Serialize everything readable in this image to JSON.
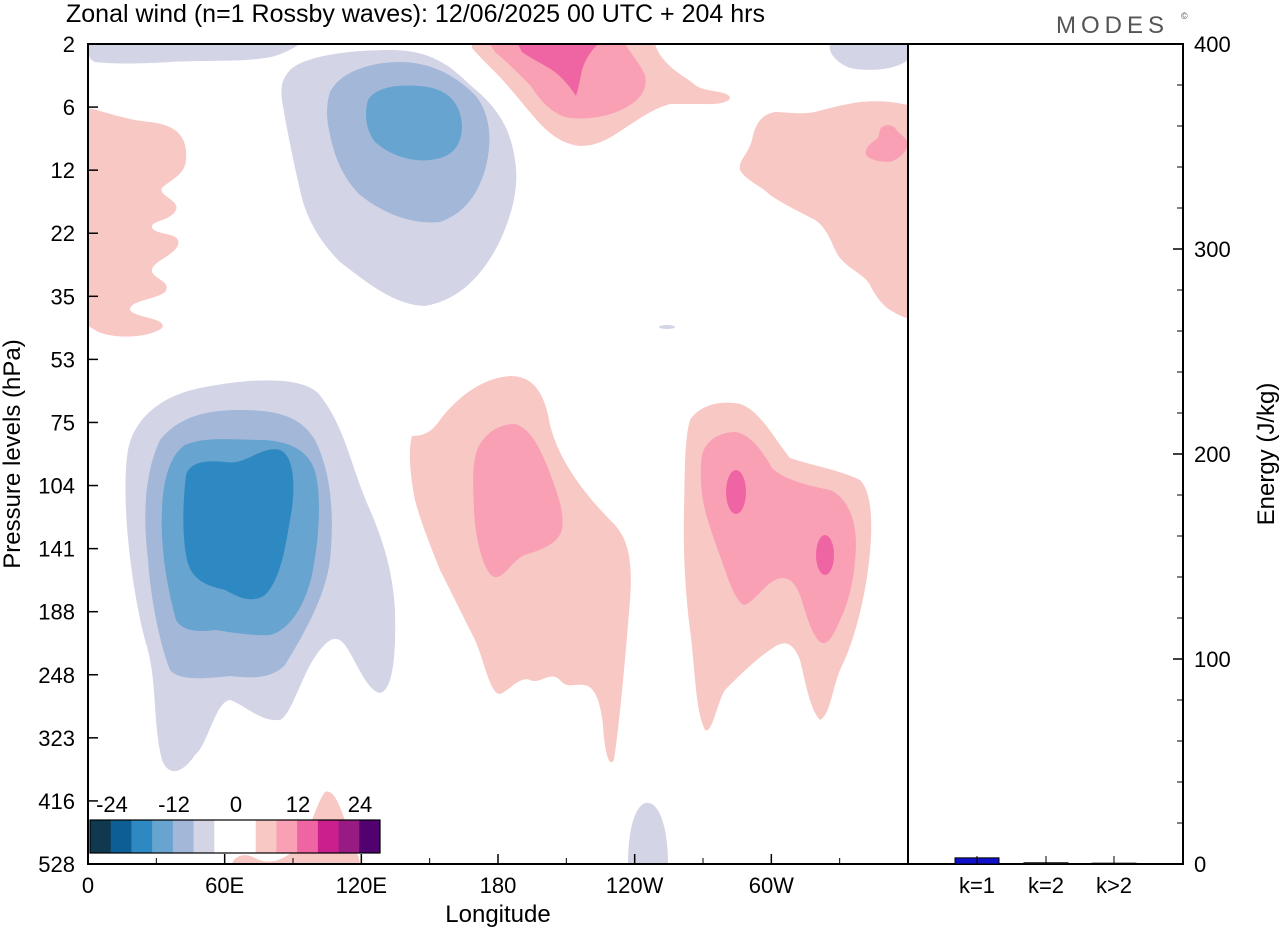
{
  "title": "Zonal wind (n=1 Rossby waves):  12/06/2025  00 UTC  + 204 hrs",
  "logo": "MODES",
  "logo_mark": "©",
  "chart_data": [
    {
      "type": "heatmap",
      "title": "Zonal wind (n=1 Rossby waves):  12/06/2025  00 UTC  + 204 hrs",
      "xlabel": "Longitude",
      "ylabel": "Pressure levels (hPa)",
      "x_ticks": [
        "0",
        "60E",
        "120E",
        "180",
        "120W",
        "60W"
      ],
      "x_tick_degrees": [
        0,
        60,
        120,
        180,
        240,
        300
      ],
      "xlim": [
        0,
        360
      ],
      "y_ticks": [
        "2",
        "6",
        "12",
        "22",
        "35",
        "53",
        "75",
        "104",
        "141",
        "188",
        "248",
        "323",
        "416",
        "528"
      ],
      "y_scale": "pressure levels (top 2 hPa, bottom 528 hPa)",
      "colorbar": {
        "labels": [
          "-24",
          "-12",
          "0",
          "12",
          "24"
        ],
        "colors": [
          "#10384f",
          "#0d5e93",
          "#2e89c2",
          "#67a4cf",
          "#a3b7d8",
          "#d3d5e7",
          "#ffffff",
          "#ffffff",
          "#f8c8c5",
          "#f9a0b5",
          "#ef64a3",
          "#c9208e",
          "#981a83",
          "#520170"
        ],
        "position": "bottom-left"
      },
      "features": [
        {
          "sign": "negative",
          "center_lon": 62,
          "center_level": "141",
          "max_level": "deep blue",
          "label": "upper-troposphere easterly cell"
        },
        {
          "sign": "negative",
          "center_lon": 145,
          "center_level": "6",
          "max_level": "blue",
          "label": "stratospheric cell"
        },
        {
          "sign": "positive",
          "center_lon": 200,
          "center_level": "104",
          "max_level": "pink"
        },
        {
          "sign": "positive",
          "center_lon": 290,
          "center_level": "141",
          "max_level": "magenta"
        },
        {
          "sign": "positive",
          "center_lon": 210,
          "center_level": "2",
          "max_level": "magenta"
        },
        {
          "sign": "positive",
          "center_lon": 345,
          "center_level": "12",
          "max_level": "pink"
        },
        {
          "sign": "positive",
          "center_lon": 10,
          "center_level": "22",
          "max_level": "light pink"
        }
      ]
    },
    {
      "type": "bar",
      "categories": [
        "k=1",
        "k=2",
        "k>2"
      ],
      "values": [
        3,
        0.6,
        0.4
      ],
      "ylabel": "Energy (J/kg)",
      "ylim": [
        0,
        400
      ],
      "y_ticks": [
        "0",
        "100",
        "200",
        "300",
        "400"
      ],
      "bar_color": "#1010cc",
      "axis_side": "right"
    }
  ],
  "colors": {
    "blue_1": "#d3d5e7",
    "blue_2": "#a3b7d8",
    "blue_3": "#67a4cf",
    "blue_4": "#2e89c2",
    "pink_1": "#f8c8c5",
    "pink_2": "#f9a0b5",
    "pink_3": "#ef64a3"
  }
}
